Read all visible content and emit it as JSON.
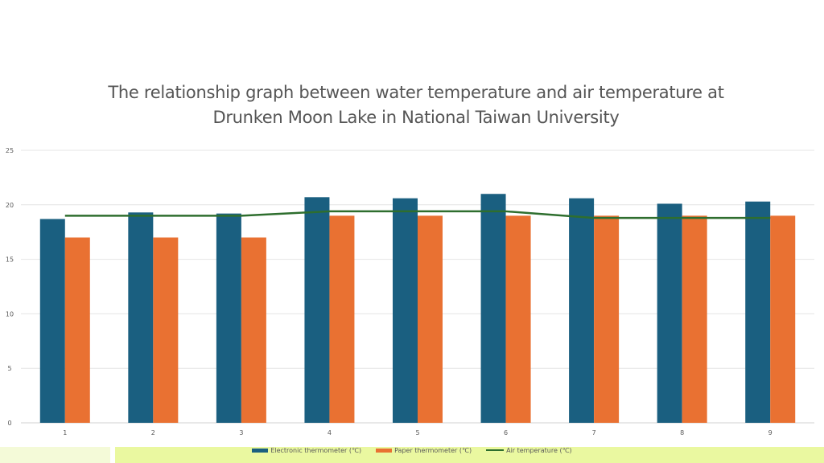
{
  "chart_data": {
    "type": "bar",
    "title": "The relationship graph between water temperature and air temperature at Drunken Moon Lake in National Taiwan University",
    "title_lines": [
      "The relationship graph between water temperature and air temperature at",
      "Drunken Moon Lake in National Taiwan University"
    ],
    "categories": [
      "1",
      "2",
      "3",
      "4",
      "5",
      "6",
      "7",
      "8",
      "9"
    ],
    "ylim": [
      0,
      25
    ],
    "yticks": [
      "0",
      "5",
      "10",
      "15",
      "20",
      "25"
    ],
    "grid": true,
    "legend_position": "bottom",
    "series": [
      {
        "name": "Electronic thermometer (℃)",
        "type": "bar",
        "color": "#1a5f80",
        "values": [
          18.7,
          19.3,
          19.2,
          20.7,
          20.6,
          21.0,
          20.6,
          20.1,
          20.3
        ]
      },
      {
        "name": "Paper thermometer (℃)",
        "type": "bar",
        "color": "#e97132",
        "values": [
          17,
          17,
          17,
          19,
          19,
          19,
          19,
          19,
          19
        ]
      },
      {
        "name": "Air temperature (℃)",
        "type": "line",
        "color": "#2e6e2e",
        "values": [
          19.0,
          19.0,
          19.0,
          19.4,
          19.4,
          19.4,
          18.8,
          18.8,
          18.8
        ]
      }
    ]
  }
}
